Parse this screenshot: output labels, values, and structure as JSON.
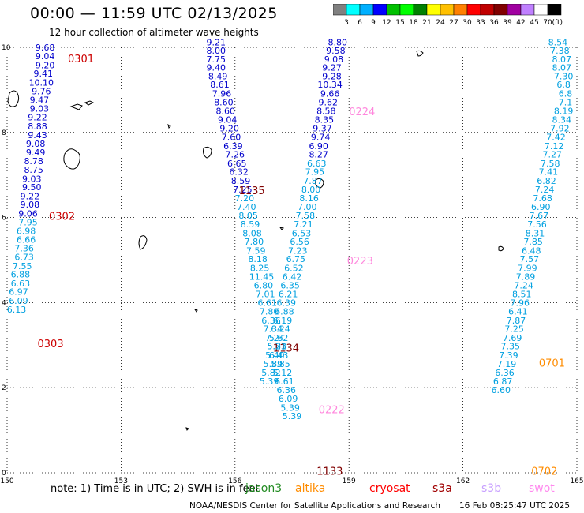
{
  "title": "00:00 — 11:59 UTC 02/13/2025",
  "subtitle": "12 hour collection of altimeter wave heights",
  "colorbar": {
    "unit": "(ft)",
    "labels": [
      "3",
      "6",
      "9",
      "12",
      "15",
      "18",
      "21",
      "24",
      "27",
      "30",
      "33",
      "36",
      "39",
      "42",
      "45",
      "70"
    ],
    "colors": [
      "#808080",
      "#00ffff",
      "#00b0ff",
      "#0000ff",
      "#00c000",
      "#00ff00",
      "#008000",
      "#ffff00",
      "#ffc000",
      "#ff8000",
      "#ff0000",
      "#c00000",
      "#800000",
      "#a000a0",
      "#c080ff",
      "#ffffff",
      "#000000"
    ]
  },
  "footer": {
    "note": "note: 1) Time is in UTC; 2) SWH is in feet",
    "credit": "NOAA/NESDIS Center for Satellite Applications and Research",
    "generated": "16 Feb 08:25:47 UTC 2025",
    "satellites": [
      {
        "name": "jason3",
        "color": "#228b22"
      },
      {
        "name": "altika",
        "color": "#ff8c00"
      },
      {
        "name": "cryosat",
        "color": "#ff0000"
      },
      {
        "name": "s3a",
        "color": "#a00000"
      },
      {
        "name": "s3b",
        "color": "#c8a0ff"
      },
      {
        "name": "swot",
        "color": "#ff88ee"
      }
    ]
  },
  "chart_data": {
    "type": "scatter",
    "title": "00:00 — 11:59 UTC 02/13/2025",
    "subtitle": "12 hour collection of altimeter wave heights",
    "xlabel": "",
    "ylabel": "",
    "xlim": [
      150,
      165
    ],
    "ylim": [
      0,
      10
    ],
    "x_ticks": [
      "150",
      "153",
      "156",
      "159",
      "162",
      "165"
    ],
    "y_ticks": [
      "0",
      "2",
      "4",
      "6",
      "8",
      "10"
    ],
    "grid": true,
    "unit": "ft",
    "tracks": [
      {
        "time": "0301",
        "time_color": "#cc0000",
        "value_color": "#0000cc",
        "label_pos": [
          151.6,
          9.65
        ],
        "points": [
          [
            151.0,
            9.93,
            "9.68"
          ],
          [
            151.0,
            9.72,
            "9.04"
          ],
          [
            151.0,
            9.51,
            "9.20"
          ],
          [
            150.95,
            9.31,
            "9.41"
          ],
          [
            150.9,
            9.1,
            "10.10"
          ],
          [
            150.9,
            8.9,
            "9.76"
          ],
          [
            150.85,
            8.69,
            "9.47"
          ],
          [
            150.85,
            8.49,
            "9.03"
          ],
          [
            150.8,
            8.28,
            "9.22"
          ]
        ]
      },
      {
        "time": "0302",
        "time_color": "#cc0000",
        "value_color": "#0000cc",
        "label_pos": [
          151.1,
          5.95
        ],
        "points": [
          [
            150.8,
            8.07,
            "8.88"
          ],
          [
            150.8,
            7.87,
            "9.43"
          ],
          [
            150.75,
            7.66,
            "9.08"
          ],
          [
            150.75,
            7.46,
            "9.49"
          ],
          [
            150.7,
            7.25,
            "8.78"
          ],
          [
            150.7,
            7.05,
            "8.75"
          ],
          [
            150.65,
            6.84,
            "9.03"
          ],
          [
            150.65,
            6.64,
            "9.50"
          ],
          [
            150.6,
            6.43,
            "9.22"
          ],
          [
            150.6,
            6.23,
            "9.08"
          ],
          [
            150.55,
            6.02,
            "9.06"
          ]
        ]
      },
      {
        "time": "0303",
        "time_color": "#cc0000",
        "value_color": "#00a0e0",
        "label_pos": [
          150.8,
          2.95
        ],
        "points": [
          [
            150.55,
            5.82,
            "7.95"
          ],
          [
            150.5,
            5.61,
            "6.98"
          ],
          [
            150.5,
            5.41,
            "6.66"
          ],
          [
            150.45,
            5.2,
            "7.36"
          ],
          [
            150.45,
            5.0,
            "6.73"
          ],
          [
            150.4,
            4.79,
            "7.55"
          ],
          [
            150.35,
            4.59,
            "6.88"
          ],
          [
            150.35,
            4.38,
            "6.63"
          ],
          [
            150.3,
            4.18,
            "6.97"
          ],
          [
            150.3,
            3.97,
            "6.09"
          ],
          [
            150.25,
            3.77,
            "6.13"
          ]
        ]
      },
      {
        "time": "1135",
        "time_color": "#800000",
        "value_color": "#0000cc",
        "label_pos": [
          156.1,
          6.55
        ],
        "points": [
          [
            155.5,
            10.05,
            "9.21"
          ],
          [
            155.5,
            9.85,
            "8.00"
          ],
          [
            155.5,
            9.65,
            "7.75"
          ],
          [
            155.5,
            9.45,
            "9.40"
          ],
          [
            155.55,
            9.25,
            "8.49"
          ],
          [
            155.6,
            9.05,
            "8.61"
          ],
          [
            155.65,
            8.84,
            "7.96"
          ],
          [
            155.7,
            8.64,
            "8.60"
          ],
          [
            155.75,
            8.43,
            "8.60"
          ],
          [
            155.8,
            8.23,
            "9.04"
          ],
          [
            155.85,
            8.02,
            "9.20"
          ],
          [
            155.9,
            7.82,
            "7.60"
          ],
          [
            155.95,
            7.61,
            "6.39"
          ],
          [
            156.0,
            7.41,
            "7.26"
          ],
          [
            156.05,
            7.2,
            "6.65"
          ],
          [
            156.1,
            7.0,
            "6.32"
          ],
          [
            156.15,
            6.79,
            "8.59"
          ],
          [
            156.2,
            6.59,
            "7.25"
          ]
        ]
      },
      {
        "time": "1134",
        "time_color": "#800000",
        "value_color": "#00a0e0",
        "label_pos": [
          157.0,
          2.85
        ],
        "points": [
          [
            156.25,
            6.38,
            "7.20"
          ],
          [
            156.3,
            6.18,
            "7.40"
          ],
          [
            156.35,
            5.97,
            "8.05"
          ],
          [
            156.4,
            5.77,
            "8.59"
          ],
          [
            156.45,
            5.56,
            "8.08"
          ],
          [
            156.5,
            5.36,
            "7.80"
          ],
          [
            156.55,
            5.15,
            "7.59"
          ],
          [
            156.6,
            4.95,
            "8.18"
          ],
          [
            156.65,
            4.74,
            "8.25"
          ],
          [
            156.7,
            4.54,
            "11.45"
          ],
          [
            156.75,
            4.33,
            "6.80"
          ],
          [
            156.8,
            4.13,
            "7.01"
          ],
          [
            156.85,
            3.92,
            "6.61"
          ],
          [
            156.9,
            3.72,
            "7.80"
          ],
          [
            156.95,
            3.51,
            "6.36"
          ],
          [
            157.0,
            3.31,
            "7.34"
          ],
          [
            157.05,
            3.1,
            "7.24"
          ],
          [
            157.1,
            2.9,
            "5.81"
          ],
          [
            157.15,
            2.69,
            "6.43"
          ]
        ]
      },
      {
        "time": "1133",
        "time_color": "#800000",
        "value_color": "#00a0e0",
        "label_pos": [
          158.15,
          -0.05
        ],
        "points": [
          [
            157.2,
            2.49,
            "5.85"
          ],
          [
            157.25,
            2.28,
            "5.12"
          ],
          [
            157.3,
            2.08,
            "6.61"
          ],
          [
            157.35,
            1.87,
            "6.36"
          ],
          [
            157.4,
            1.67,
            "6.09"
          ],
          [
            157.45,
            1.46,
            "5.39"
          ],
          [
            157.5,
            1.26,
            "5.39"
          ]
        ]
      },
      {
        "time": "0224",
        "time_color": "#ff88dd",
        "value_color": "#0000cc",
        "label_pos": [
          159.0,
          8.4
        ],
        "points": [
          [
            158.7,
            10.05,
            "8.80"
          ],
          [
            158.65,
            9.85,
            "9.58"
          ],
          [
            158.6,
            9.65,
            "9.08"
          ],
          [
            158.55,
            9.45,
            "9.27"
          ],
          [
            158.55,
            9.25,
            "9.28"
          ],
          [
            158.5,
            9.05,
            "10.34"
          ],
          [
            158.5,
            8.84,
            "9.66"
          ],
          [
            158.45,
            8.64,
            "9.62"
          ],
          [
            158.4,
            8.43,
            "8.58"
          ],
          [
            158.35,
            8.23,
            "8.35"
          ],
          [
            158.3,
            8.02,
            "9.37"
          ],
          [
            158.25,
            7.82,
            "9.74"
          ],
          [
            158.2,
            7.61,
            "6.90"
          ],
          [
            158.2,
            7.41,
            "8.27"
          ]
        ]
      },
      {
        "time": "0223",
        "time_color": "#ff88dd",
        "value_color": "#00a0e0",
        "label_pos": [
          158.95,
          4.9
        ],
        "points": [
          [
            158.15,
            7.2,
            "6.63"
          ],
          [
            158.1,
            7.0,
            "7.95"
          ],
          [
            158.05,
            6.79,
            "7.87"
          ],
          [
            158.0,
            6.59,
            "8.00"
          ],
          [
            157.95,
            6.38,
            "8.16"
          ],
          [
            157.9,
            6.18,
            "7.00"
          ],
          [
            157.85,
            5.97,
            "7.58"
          ],
          [
            157.8,
            5.77,
            "7.21"
          ],
          [
            157.75,
            5.56,
            "6.53"
          ],
          [
            157.7,
            5.36,
            "6.56"
          ],
          [
            157.65,
            5.15,
            "7.23"
          ],
          [
            157.6,
            4.95,
            "6.75"
          ],
          [
            157.55,
            4.74,
            "6.52"
          ],
          [
            157.5,
            4.54,
            "6.42"
          ],
          [
            157.45,
            4.33,
            "6.35"
          ],
          [
            157.4,
            4.13,
            "6.21"
          ]
        ]
      },
      {
        "time": "0222",
        "time_color": "#ff88dd",
        "value_color": "#00a0e0",
        "label_pos": [
          158.2,
          1.4
        ],
        "points": [
          [
            157.35,
            3.92,
            "6.39"
          ],
          [
            157.3,
            3.72,
            "6.88"
          ],
          [
            157.25,
            3.51,
            "6.19"
          ],
          [
            157.2,
            3.31,
            "6.24"
          ],
          [
            157.15,
            3.1,
            "5.62"
          ],
          [
            157.1,
            2.9,
            "5.23"
          ],
          [
            157.05,
            2.69,
            "5.40"
          ],
          [
            157.0,
            2.49,
            "5.89"
          ],
          [
            156.95,
            2.28,
            "5.82"
          ],
          [
            156.9,
            2.08,
            "5.39"
          ]
        ]
      },
      {
        "time": "0701",
        "time_color": "#ff8c00",
        "value_color": "#00a0e0",
        "label_pos": [
          164.0,
          2.5
        ],
        "points": [
          [
            164.5,
            10.05,
            "8.54"
          ],
          [
            164.55,
            9.85,
            "7.38"
          ],
          [
            164.6,
            9.65,
            "8.07"
          ],
          [
            164.6,
            9.45,
            "8.07"
          ],
          [
            164.65,
            9.25,
            "7.30"
          ],
          [
            164.65,
            9.05,
            "6.8"
          ],
          [
            164.7,
            8.84,
            "6.8"
          ],
          [
            164.7,
            8.64,
            "7.1"
          ],
          [
            164.65,
            8.43,
            "8.19"
          ],
          [
            164.6,
            8.23,
            "8.34"
          ],
          [
            164.55,
            8.02,
            "7.92"
          ],
          [
            164.45,
            7.82,
            "7.42"
          ],
          [
            164.4,
            7.61,
            "7.12"
          ],
          [
            164.35,
            7.41,
            "7.27"
          ],
          [
            164.3,
            7.2,
            "7.58"
          ],
          [
            164.25,
            7.0,
            "7.41"
          ],
          [
            164.2,
            6.79,
            "6.82"
          ],
          [
            164.15,
            6.59,
            "7.24"
          ],
          [
            164.1,
            6.38,
            "7.68"
          ],
          [
            164.05,
            6.18,
            "6.90"
          ],
          [
            164.0,
            5.97,
            "7.67"
          ],
          [
            163.95,
            5.77,
            "7.56"
          ],
          [
            163.9,
            5.56,
            "8.31"
          ],
          [
            163.85,
            5.36,
            "7.85"
          ],
          [
            163.8,
            5.15,
            "6.48"
          ],
          [
            163.75,
            4.95,
            "7.57"
          ],
          [
            163.7,
            4.74,
            "7.99"
          ],
          [
            163.65,
            4.54,
            "7.89"
          ],
          [
            163.6,
            4.33,
            "7.24"
          ],
          [
            163.55,
            4.13,
            "8.51"
          ],
          [
            163.5,
            3.92,
            "7.96"
          ],
          [
            163.45,
            3.72,
            "6.41"
          ]
        ]
      },
      {
        "time": "0702",
        "time_color": "#ff8c00",
        "value_color": "#00a0e0",
        "label_pos": [
          163.8,
          -0.05
        ],
        "points": [
          [
            163.4,
            3.51,
            "7.87"
          ],
          [
            163.35,
            3.31,
            "7.25"
          ],
          [
            163.3,
            3.1,
            "7.69"
          ],
          [
            163.25,
            2.9,
            "7.35"
          ],
          [
            163.2,
            2.69,
            "7.39"
          ],
          [
            163.15,
            2.49,
            "7.19"
          ],
          [
            163.1,
            2.28,
            "6.36"
          ],
          [
            163.05,
            2.08,
            "6.87"
          ],
          [
            163.0,
            1.87,
            "6.60"
          ]
        ]
      }
    ]
  }
}
